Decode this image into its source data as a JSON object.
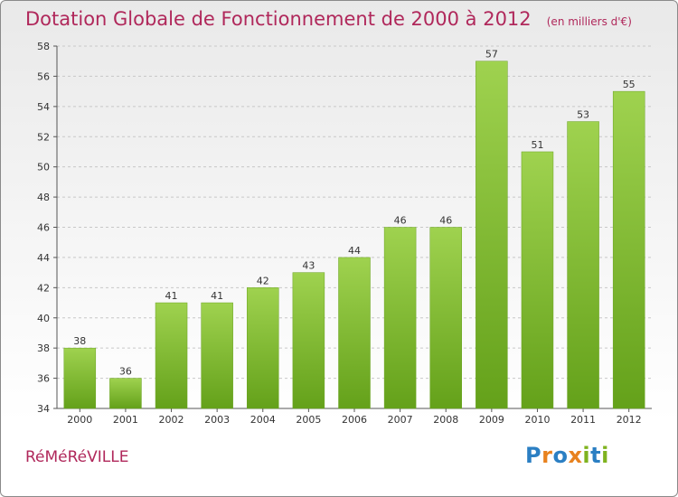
{
  "chart_data": {
    "type": "bar",
    "title": "Dotation Globale de Fonctionnement de 2000 à 2012",
    "unit_note": "(en milliers d'€)",
    "categories": [
      "2000",
      "2001",
      "2002",
      "2003",
      "2004",
      "2005",
      "2006",
      "2007",
      "2008",
      "2009",
      "2010",
      "2011",
      "2012"
    ],
    "values": [
      38,
      36,
      41,
      41,
      42,
      43,
      44,
      46,
      46,
      57,
      51,
      53,
      55
    ],
    "ylim": [
      34,
      58
    ],
    "yticks": [
      34,
      36,
      38,
      40,
      42,
      44,
      46,
      48,
      50,
      52,
      54,
      56,
      58
    ],
    "grid": "horizontal dashed",
    "bar_color": "#7ab72c"
  },
  "commune": "RéMéRéVILLE",
  "logo_letters": [
    "P",
    "r",
    "o",
    "x",
    "i",
    "t",
    "i"
  ]
}
